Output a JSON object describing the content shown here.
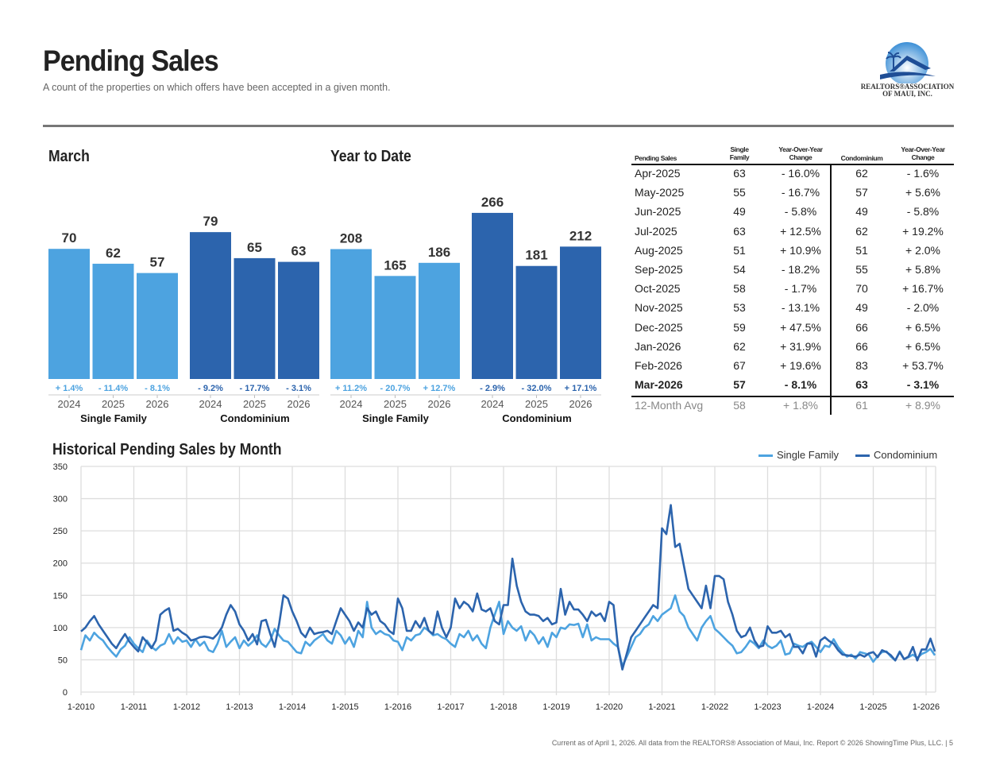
{
  "header": {
    "title": "Pending Sales",
    "subtitle": "A count of the properties on which offers have been accepted in a given month.",
    "logo_text_1": "REALTORS®ASSOCIATION",
    "logo_text_2": "OF MAUI, INC."
  },
  "colors": {
    "single_family": "#4da3e0",
    "condominium": "#2c64ad"
  },
  "chart_data": [
    {
      "type": "bar",
      "title": "March",
      "categories": [
        "2024",
        "2025",
        "2026"
      ],
      "groups": [
        {
          "name": "Single Family",
          "values": [
            70,
            62,
            57
          ],
          "changes": [
            "+ 1.4%",
            "- 11.4%",
            "- 8.1%"
          ]
        },
        {
          "name": "Condominium",
          "values": [
            79,
            65,
            63
          ],
          "changes": [
            "- 9.2%",
            "- 17.7%",
            "- 3.1%"
          ]
        }
      ]
    },
    {
      "type": "bar",
      "title": "Year to Date",
      "categories": [
        "2024",
        "2025",
        "2026"
      ],
      "groups": [
        {
          "name": "Single Family",
          "values": [
            208,
            165,
            186
          ],
          "changes": [
            "+ 11.2%",
            "- 20.7%",
            "+ 12.7%"
          ]
        },
        {
          "name": "Condominium",
          "values": [
            266,
            181,
            212
          ],
          "changes": [
            "- 2.9%",
            "- 32.0%",
            "+ 17.1%"
          ]
        }
      ]
    },
    {
      "type": "line",
      "title": "Historical Pending Sales by Month",
      "ylim": [
        0,
        350
      ],
      "yticks": [
        0,
        50,
        100,
        150,
        200,
        250,
        300,
        350
      ],
      "xticks": [
        "1-2010",
        "1-2011",
        "1-2012",
        "1-2013",
        "1-2014",
        "1-2015",
        "1-2016",
        "1-2017",
        "1-2018",
        "1-2019",
        "1-2020",
        "1-2021",
        "1-2022",
        "1-2023",
        "1-2024",
        "1-2025",
        "1-2026"
      ],
      "start": "1-2010",
      "grid": true,
      "legend": "top-right",
      "series": [
        {
          "name": "Single Family",
          "values": [
            65,
            88,
            80,
            92,
            85,
            80,
            70,
            62,
            55,
            66,
            72,
            85,
            75,
            68,
            62,
            80,
            70,
            65,
            72,
            75,
            90,
            75,
            85,
            78,
            80,
            70,
            82,
            72,
            78,
            65,
            62,
            75,
            95,
            70,
            78,
            85,
            68,
            80,
            72,
            78,
            88,
            75,
            70,
            80,
            98,
            88,
            80,
            78,
            70,
            62,
            60,
            78,
            72,
            80,
            85,
            90,
            80,
            75,
            95,
            88,
            75,
            85,
            70,
            95,
            85,
            140,
            100,
            90,
            95,
            90,
            88,
            80,
            78,
            65,
            85,
            80,
            88,
            90,
            100,
            95,
            88,
            90,
            85,
            82,
            75,
            70,
            90,
            85,
            95,
            80,
            88,
            75,
            68,
            100,
            120,
            140,
            90,
            110,
            100,
            95,
            102,
            80,
            95,
            88,
            75,
            85,
            70,
            92,
            85,
            100,
            98,
            105,
            104,
            106,
            85,
            105,
            80,
            85,
            82,
            82,
            82,
            75,
            70,
            40,
            55,
            70,
            85,
            90,
            100,
            105,
            118,
            110,
            120,
            125,
            130,
            150,
            125,
            118,
            100,
            90,
            80,
            100,
            110,
            118,
            98,
            92,
            85,
            78,
            72,
            60,
            62,
            70,
            80,
            75,
            68,
            80,
            72,
            68,
            72,
            80,
            58,
            60,
            75,
            72,
            70,
            75,
            78,
            70,
            62,
            72,
            70,
            82,
            70,
            62,
            55,
            58,
            52,
            62,
            60,
            58,
            47,
            56,
            62,
            63,
            55,
            49,
            63,
            51,
            54,
            58,
            53,
            59,
            62,
            67,
            57
          ]
        },
        {
          "name": "Condominium",
          "values": [
            94,
            100,
            110,
            118,
            105,
            95,
            85,
            75,
            68,
            80,
            90,
            78,
            70,
            63,
            85,
            77,
            68,
            80,
            120,
            126,
            130,
            95,
            98,
            92,
            88,
            80,
            82,
            85,
            86,
            85,
            83,
            90,
            100,
            120,
            135,
            125,
            105,
            95,
            80,
            90,
            74,
            110,
            112,
            90,
            70,
            105,
            150,
            145,
            125,
            110,
            92,
            85,
            100,
            90,
            92,
            93,
            95,
            90,
            110,
            130,
            120,
            110,
            95,
            108,
            100,
            130,
            120,
            125,
            110,
            105,
            95,
            90,
            145,
            130,
            95,
            95,
            110,
            100,
            115,
            95,
            90,
            125,
            100,
            85,
            100,
            145,
            130,
            140,
            135,
            125,
            153,
            128,
            125,
            130,
            110,
            105,
            135,
            135,
            207,
            165,
            140,
            125,
            120,
            120,
            118,
            110,
            115,
            105,
            108,
            160,
            120,
            140,
            128,
            128,
            120,
            110,
            125,
            118,
            122,
            110,
            140,
            135,
            70,
            35,
            60,
            85,
            95,
            105,
            115,
            125,
            135,
            130,
            254,
            245,
            290,
            225,
            230,
            195,
            160,
            150,
            140,
            130,
            165,
            130,
            180,
            180,
            175,
            140,
            120,
            95,
            85,
            88,
            100,
            80,
            70,
            72,
            102,
            92,
            92,
            95,
            85,
            90,
            70,
            70,
            60,
            75,
            75,
            55,
            80,
            85,
            79,
            75,
            65,
            58,
            57,
            56,
            55,
            58,
            55,
            60,
            62,
            54,
            65,
            62,
            57,
            49,
            62,
            51,
            55,
            70,
            49,
            66,
            66,
            83,
            63
          ]
        }
      ]
    }
  ],
  "table": {
    "headers": [
      "Pending Sales",
      "Single Family",
      "Year-Over-Year Change",
      "Condominium",
      "Year-Over-Year Change"
    ],
    "rows": [
      [
        "Apr-2025",
        "63",
        "- 16.0%",
        "62",
        "- 1.6%"
      ],
      [
        "May-2025",
        "55",
        "- 16.7%",
        "57",
        "+ 5.6%"
      ],
      [
        "Jun-2025",
        "49",
        "- 5.8%",
        "49",
        "- 5.8%"
      ],
      [
        "Jul-2025",
        "63",
        "+ 12.5%",
        "62",
        "+ 19.2%"
      ],
      [
        "Aug-2025",
        "51",
        "+ 10.9%",
        "51",
        "+ 2.0%"
      ],
      [
        "Sep-2025",
        "54",
        "- 18.2%",
        "55",
        "+ 5.8%"
      ],
      [
        "Oct-2025",
        "58",
        "- 1.7%",
        "70",
        "+ 16.7%"
      ],
      [
        "Nov-2025",
        "53",
        "- 13.1%",
        "49",
        "- 2.0%"
      ],
      [
        "Dec-2025",
        "59",
        "+ 47.5%",
        "66",
        "+ 6.5%"
      ],
      [
        "Jan-2026",
        "62",
        "+ 31.9%",
        "66",
        "+ 6.5%"
      ],
      [
        "Feb-2026",
        "67",
        "+ 19.6%",
        "83",
        "+ 53.7%"
      ],
      [
        "Mar-2026",
        "57",
        "- 8.1%",
        "63",
        "- 3.1%"
      ]
    ],
    "avg": [
      "12-Month Avg",
      "58",
      "+ 1.8%",
      "61",
      "+ 8.9%"
    ]
  },
  "footer": "Current as of April 1, 2026. All data from the REALTORS® Association of Maui, Inc. Report © 2026 ShowingTime Plus, LLC.  |  5"
}
